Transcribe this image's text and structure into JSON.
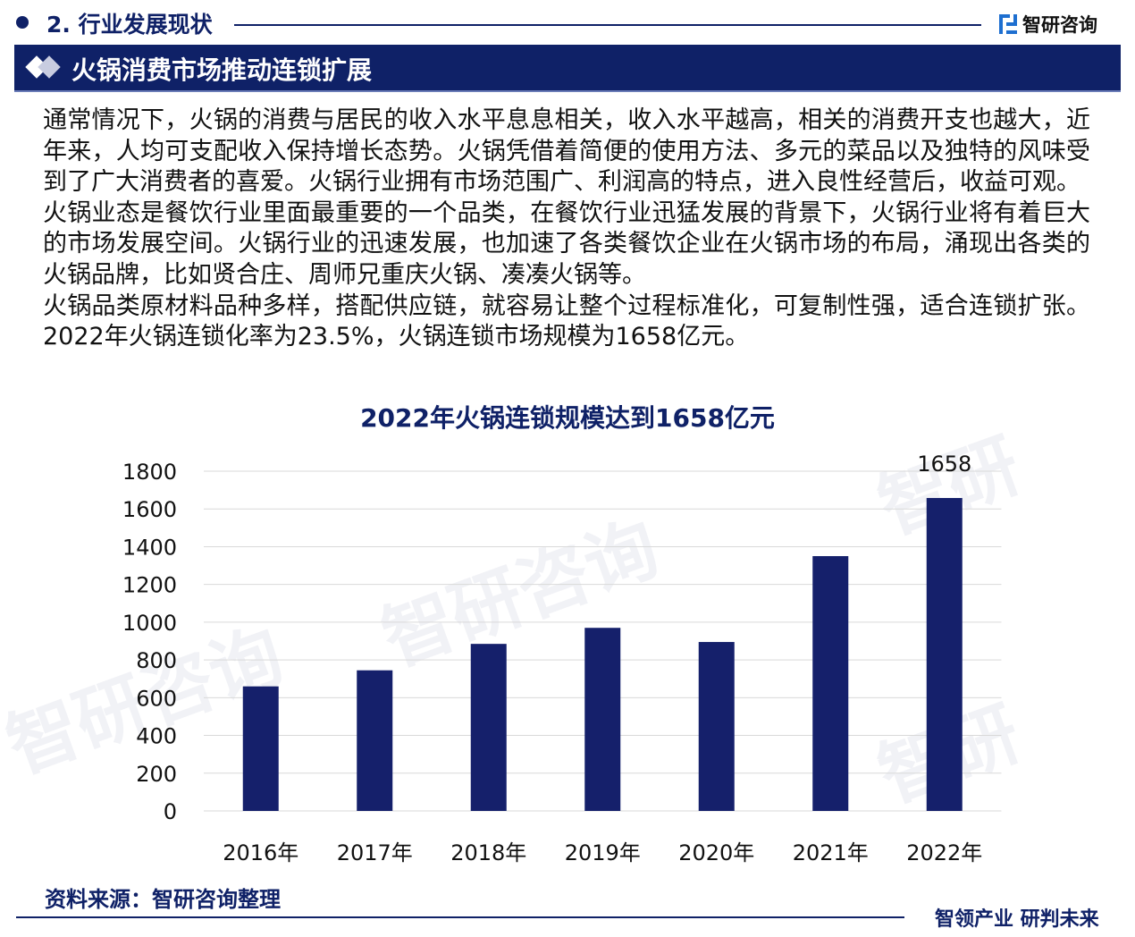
{
  "header": {
    "section_title": "2. 行业发展现状",
    "logo_text": "智研咨询",
    "banner_title": "火锅消费市场推动连锁扩展"
  },
  "body": {
    "paragraphs": [
      "通常情况下，火锅的消费与居民的收入水平息息相关，收入水平越高，相关的消费开支也越大，近年来，人均可支配收入保持增长态势。火锅凭借着简便的使用方法、多元的菜品以及独特的风味受到了广大消费者的喜爱。火锅行业拥有市场范围广、利润高的特点，进入良性经营后，收益可观。",
      "火锅业态是餐饮行业里面最重要的一个品类，在餐饮行业迅猛发展的背景下，火锅行业将有着巨大的市场发展空间。火锅行业的迅速发展，也加速了各类餐饮企业在火锅市场的布局，涌现出各类的火锅品牌，比如贤合庄、周师兄重庆火锅、凑凑火锅等。",
      "火锅品类原材料品种多样，搭配供应链，就容易让整个过程标准化，可复制性强，适合连锁扩张。2022年火锅连锁化率为23.5%，火锅连锁市场规模为1658亿元。"
    ]
  },
  "chart_data": {
    "type": "bar",
    "title": "2022年火锅连锁规模达到1658亿元",
    "categories": [
      "2016年",
      "2017年",
      "2018年",
      "2019年",
      "2020年",
      "2021年",
      "2022年"
    ],
    "values": [
      660,
      745,
      885,
      970,
      895,
      1350,
      1658
    ],
    "data_labels": [
      "",
      "",
      "",
      "",
      "",
      "",
      "1658"
    ],
    "ylim": [
      0,
      1800
    ],
    "yticks": [
      "0",
      "200",
      "400",
      "600",
      "800",
      "1000",
      "1200",
      "1400",
      "1600",
      "1800"
    ],
    "xlabel": "",
    "ylabel": "",
    "grid": true,
    "bar_color": "#15206b"
  },
  "footer": {
    "source": "资料来源：智研咨询整理",
    "slogan": "智领产业 研判未来"
  },
  "colors": {
    "brand": "#0f2167",
    "logo_accent": "#1e6fd0"
  }
}
